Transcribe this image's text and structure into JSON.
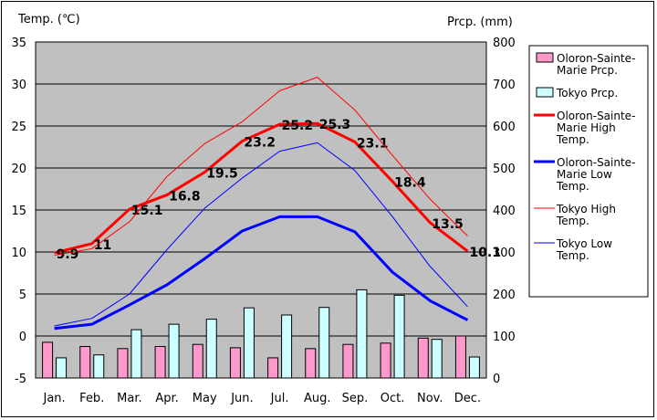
{
  "chart_data": {
    "type": "bar+line",
    "categories": [
      "Jan.",
      "Feb.",
      "Mar.",
      "Apr.",
      "May",
      "Jun.",
      "Jul.",
      "Aug.",
      "Sep.",
      "Oct.",
      "Nov.",
      "Dec."
    ],
    "y_left": {
      "label": "Temp. (℃)",
      "ticks": [
        35,
        30,
        25,
        20,
        15,
        10,
        5,
        0,
        -5
      ],
      "range": [
        -5,
        35
      ]
    },
    "y_right": {
      "label": "Prcp. (mm)",
      "ticks": [
        800,
        700,
        600,
        500,
        400,
        300,
        200,
        100,
        0
      ],
      "range": [
        0,
        800
      ]
    },
    "bars": [
      {
        "name": "Oloron-Sainte-Marie Prcp.",
        "color": "#ff99cc",
        "values": [
          85,
          75,
          70,
          75,
          80,
          72,
          48,
          70,
          80,
          83,
          95,
          100
        ]
      },
      {
        "name": "Tokyo Prcp.",
        "color": "#ccffff",
        "values": [
          48,
          55,
          115,
          128,
          140,
          167,
          150,
          168,
          210,
          197,
          92,
          50
        ]
      }
    ],
    "lines": [
      {
        "name": "Oloron-Sainte-Marie High Temp.",
        "color": "#ff0000",
        "width": 3,
        "labeled": true,
        "values": [
          9.9,
          11,
          15.1,
          16.8,
          19.5,
          23.2,
          25.2,
          25.3,
          23.1,
          18.4,
          13.5,
          10.1
        ]
      },
      {
        "name": "Oloron-Sainte-Marie Low Temp.",
        "color": "#0000ff",
        "width": 3,
        "labeled": false,
        "values": [
          0.9,
          1.4,
          3.7,
          6.1,
          9.2,
          12.5,
          14.2,
          14.2,
          12.4,
          7.6,
          4.2,
          1.9
        ]
      },
      {
        "name": "Tokyo High Temp.",
        "color": "#ff0000",
        "width": 1,
        "labeled": false,
        "values": [
          9.6,
          10.4,
          13.6,
          19,
          22.9,
          25.5,
          29.2,
          30.8,
          26.9,
          21.5,
          16.3,
          11.9
        ]
      },
      {
        "name": "Tokyo Low Temp.",
        "color": "#0000ff",
        "width": 1,
        "labeled": false,
        "values": [
          1.2,
          2.1,
          5,
          10.3,
          15.2,
          18.8,
          22,
          23,
          19.7,
          14.2,
          8.3,
          3.5
        ]
      }
    ],
    "legend": {
      "position": "right",
      "items": [
        {
          "kind": "bar",
          "color": "#ff99cc",
          "lines": [
            "Oloron-Sainte-",
            "Marie Prcp."
          ]
        },
        {
          "kind": "bar",
          "color": "#ccffff",
          "lines": [
            "Tokyo Prcp."
          ]
        },
        {
          "kind": "line",
          "color": "#ff0000",
          "width": 3,
          "lines": [
            "Oloron-Sainte-",
            "Marie High",
            "Temp."
          ]
        },
        {
          "kind": "line",
          "color": "#0000ff",
          "width": 3,
          "lines": [
            "Oloron-Sainte-",
            "Marie Low",
            "Temp."
          ]
        },
        {
          "kind": "line",
          "color": "#ff0000",
          "width": 1,
          "lines": [
            "Tokyo High",
            "Temp."
          ]
        },
        {
          "kind": "line",
          "color": "#0000ff",
          "width": 1,
          "lines": [
            "Tokyo Low",
            "Temp."
          ]
        }
      ]
    },
    "plot_background": "#c0c0c0",
    "grid": "horizontal"
  }
}
